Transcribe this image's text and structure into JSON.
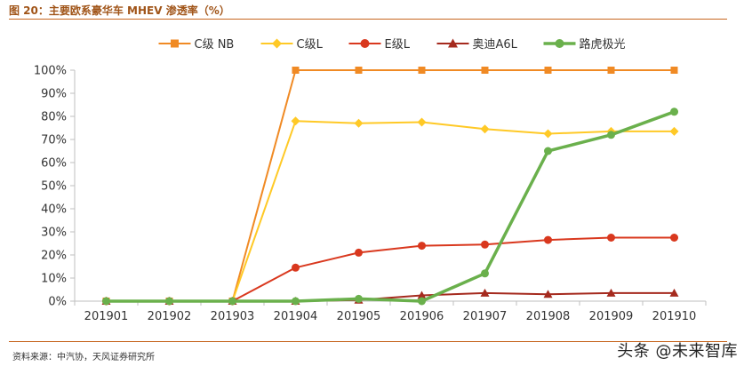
{
  "header": {
    "title": "图 20：主要欧系豪华车 MHEV 渗透率（%）"
  },
  "footer": {
    "source": "资料来源：中汽协，天风证券研究所",
    "watermark": "头条 @未来智库"
  },
  "chart_data": {
    "type": "line",
    "title": "",
    "xlabel": "",
    "ylabel": "",
    "categories": [
      "201901",
      "201902",
      "201903",
      "201904",
      "201905",
      "201906",
      "201907",
      "201908",
      "201909",
      "201910"
    ],
    "ylim": [
      0,
      100
    ],
    "yticks": [
      0,
      10,
      20,
      30,
      40,
      50,
      60,
      70,
      80,
      90,
      100
    ],
    "ytick_suffix": "%",
    "grid": false,
    "legend_position": "top",
    "series": [
      {
        "name": "C级 NB",
        "color": "#f08a24",
        "marker": "square",
        "values": [
          0,
          0,
          0,
          100,
          100,
          100,
          100,
          100,
          100,
          100
        ]
      },
      {
        "name": "C级L",
        "color": "#ffc926",
        "marker": "diamond",
        "values": [
          0,
          0,
          0,
          78,
          77,
          77.5,
          74.5,
          72.5,
          73.5,
          73.5
        ]
      },
      {
        "name": "E级L",
        "color": "#d9381e",
        "marker": "circle",
        "values": [
          0,
          0,
          0,
          14.5,
          21,
          24,
          24.5,
          26.5,
          27.5,
          27.5
        ]
      },
      {
        "name": "奥迪A6L",
        "color": "#a52a1e",
        "marker": "triangle",
        "values": [
          0,
          0,
          0,
          0,
          0.5,
          2.5,
          3.5,
          3,
          3.5,
          3.5
        ]
      },
      {
        "name": "路虎极光",
        "color": "#6ab04c",
        "marker": "circle",
        "values": [
          0,
          0,
          0,
          0,
          1,
          0,
          12,
          65,
          72,
          82
        ]
      }
    ]
  }
}
